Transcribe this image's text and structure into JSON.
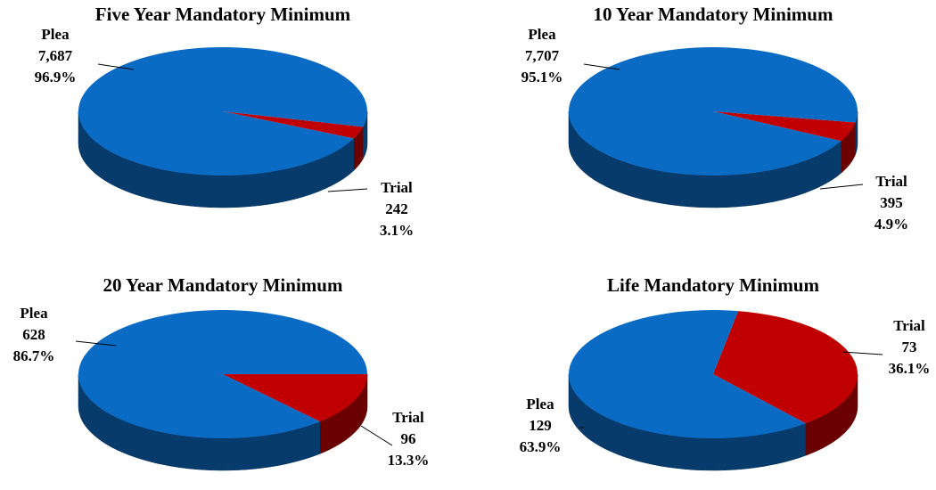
{
  "chart_data": [
    {
      "type": "pie",
      "title": "Five Year Mandatory Minimum",
      "categories": [
        "Plea",
        "Trial"
      ],
      "values": [
        7687,
        242
      ],
      "value_labels": [
        "7,687",
        "242"
      ],
      "percents": [
        96.9,
        3.1
      ],
      "percent_labels": [
        "96.9%",
        "3.1%"
      ],
      "colors": [
        "#0a6bc4",
        "#c00000"
      ]
    },
    {
      "type": "pie",
      "title": "10 Year Mandatory Minimum",
      "categories": [
        "Plea",
        "Trial"
      ],
      "values": [
        7707,
        395
      ],
      "value_labels": [
        "7,707",
        "395"
      ],
      "percents": [
        95.1,
        4.9
      ],
      "percent_labels": [
        "95.1%",
        "4.9%"
      ],
      "colors": [
        "#0a6bc4",
        "#c00000"
      ]
    },
    {
      "type": "pie",
      "title": "20 Year Mandatory Minimum",
      "categories": [
        "Plea",
        "Trial"
      ],
      "values": [
        628,
        96
      ],
      "value_labels": [
        "628",
        "96"
      ],
      "percents": [
        86.7,
        13.3
      ],
      "percent_labels": [
        "86.7%",
        "13.3%"
      ],
      "colors": [
        "#0a6bc4",
        "#c00000"
      ]
    },
    {
      "type": "pie",
      "title": "Life Mandatory Minimum",
      "categories": [
        "Plea",
        "Trial"
      ],
      "values": [
        129,
        73
      ],
      "value_labels": [
        "129",
        "73"
      ],
      "percents": [
        63.9,
        36.1
      ],
      "percent_labels": [
        "63.9%",
        "36.1%"
      ],
      "colors": [
        "#0a6bc4",
        "#c00000"
      ]
    }
  ]
}
